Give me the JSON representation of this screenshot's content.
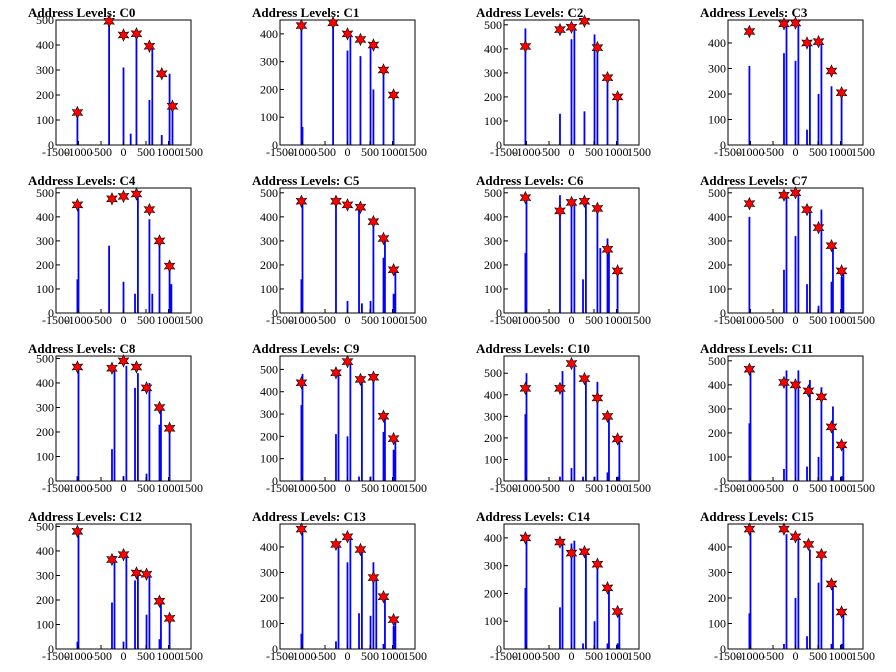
{
  "colors": {
    "bar": "#0000ff",
    "marker_fill": "#ff0000",
    "marker_edge": "#000000",
    "axes": "#000000"
  },
  "chart_data": [
    {
      "type": "bar",
      "title": "Address Levels: C0",
      "xlim": [
        -1500,
        1500
      ],
      "ylim": [
        0,
        500
      ],
      "xticks": [
        "-1500",
        "-1000",
        "-500",
        "0",
        "500",
        "1000",
        "1500"
      ],
      "yticks": [
        "0",
        "100",
        "200",
        "300",
        "400",
        "500"
      ],
      "x": [
        -1024,
        -320,
        0,
        160,
        288,
        576,
        640,
        850,
        1024,
        1088
      ],
      "y": [
        130,
        495,
        310,
        45,
        445,
        180,
        395,
        40,
        285,
        155
      ],
      "peaks": [
        [
          -1024,
          130
        ],
        [
          -320,
          495
        ],
        [
          0,
          440
        ],
        [
          288,
          445
        ],
        [
          576,
          395
        ],
        [
          850,
          285
        ],
        [
          1088,
          155
        ]
      ]
    },
    {
      "type": "bar",
      "title": "Address Levels: C1",
      "xlim": [
        -1500,
        1500
      ],
      "ylim": [
        0,
        450
      ],
      "xticks": [
        "-1500",
        "-1000",
        "-500",
        "0",
        "500",
        "1000",
        "1500"
      ],
      "yticks": [
        "0",
        "100",
        "200",
        "300",
        "400"
      ],
      "x": [
        -1024,
        -1000,
        -320,
        0,
        64,
        288,
        512,
        576,
        800,
        1024
      ],
      "y": [
        430,
        65,
        440,
        340,
        400,
        320,
        360,
        200,
        270,
        180
      ],
      "peaks": [
        [
          -1024,
          430
        ],
        [
          -320,
          440
        ],
        [
          0,
          400
        ],
        [
          288,
          380
        ],
        [
          576,
          360
        ],
        [
          800,
          270
        ],
        [
          1024,
          180
        ]
      ]
    },
    {
      "type": "bar",
      "title": "Address Levels: C2",
      "xlim": [
        -1500,
        1500
      ],
      "ylim": [
        0,
        520
      ],
      "xticks": [
        "-1500",
        "-1000",
        "-500",
        "0",
        "500",
        "1000",
        "1500"
      ],
      "yticks": [
        "0",
        "100",
        "200",
        "300",
        "400",
        "500"
      ],
      "x": [
        -1024,
        -256,
        0,
        64,
        288,
        512,
        576,
        800,
        1024
      ],
      "y": [
        485,
        130,
        440,
        480,
        140,
        460,
        400,
        290,
        200
      ],
      "peaks": [
        [
          -1024,
          410
        ],
        [
          -256,
          480
        ],
        [
          0,
          490
        ],
        [
          288,
          515
        ],
        [
          576,
          405
        ],
        [
          800,
          280
        ],
        [
          1024,
          200
        ]
      ]
    },
    {
      "type": "bar",
      "title": "Address Levels: C3",
      "xlim": [
        -1500,
        1500
      ],
      "ylim": [
        0,
        490
      ],
      "xticks": [
        "-1500",
        "-1000",
        "-500",
        "0",
        "500",
        "1000",
        "1500"
      ],
      "yticks": [
        "0",
        "100",
        "200",
        "300",
        "400"
      ],
      "x": [
        -1024,
        -256,
        -200,
        0,
        64,
        256,
        320,
        512,
        576,
        800,
        1024
      ],
      "y": [
        310,
        360,
        480,
        330,
        470,
        60,
        400,
        200,
        410,
        230,
        200
      ],
      "peaks": [
        [
          -1024,
          445
        ],
        [
          -256,
          475
        ],
        [
          0,
          478
        ],
        [
          256,
          400
        ],
        [
          512,
          405
        ],
        [
          800,
          290
        ],
        [
          1024,
          205
        ]
      ]
    },
    {
      "type": "bar",
      "title": "Address Levels: C4",
      "xlim": [
        -1500,
        1500
      ],
      "ylim": [
        0,
        520
      ],
      "xticks": [
        "-1500",
        "-1000",
        "-500",
        "0",
        "500",
        "1000",
        "1500"
      ],
      "yticks": [
        "0",
        "100",
        "200",
        "300",
        "400",
        "500"
      ],
      "x": [
        -1024,
        -1000,
        -320,
        0,
        256,
        320,
        576,
        640,
        800,
        1024,
        1064
      ],
      "y": [
        140,
        450,
        280,
        130,
        80,
        490,
        390,
        80,
        300,
        200,
        120
      ],
      "peaks": [
        [
          -1024,
          450
        ],
        [
          -256,
          475
        ],
        [
          0,
          485
        ],
        [
          288,
          495
        ],
        [
          576,
          430
        ],
        [
          800,
          300
        ],
        [
          1024,
          195
        ]
      ]
    },
    {
      "type": "bar",
      "title": "Address Levels: C5",
      "xlim": [
        -1500,
        1500
      ],
      "ylim": [
        0,
        520
      ],
      "xticks": [
        "-1500",
        "-1000",
        "-500",
        "0",
        "500",
        "1000",
        "1500"
      ],
      "yticks": [
        "0",
        "100",
        "200",
        "300",
        "400",
        "500"
      ],
      "x": [
        -1024,
        -1000,
        -256,
        0,
        256,
        320,
        512,
        576,
        800,
        832,
        1024,
        1064
      ],
      "y": [
        140,
        470,
        450,
        50,
        430,
        40,
        50,
        380,
        230,
        310,
        80,
        180
      ],
      "peaks": [
        [
          -1024,
          465
        ],
        [
          -256,
          465
        ],
        [
          0,
          450
        ],
        [
          288,
          440
        ],
        [
          576,
          380
        ],
        [
          800,
          310
        ],
        [
          1024,
          180
        ]
      ]
    },
    {
      "type": "bar",
      "title": "Address Levels: C6",
      "xlim": [
        -1500,
        1500
      ],
      "ylim": [
        0,
        520
      ],
      "xticks": [
        "-1500",
        "-1000",
        "-500",
        "0",
        "500",
        "1000",
        "1500"
      ],
      "yticks": [
        "0",
        "100",
        "200",
        "300",
        "400",
        "500"
      ],
      "x": [
        -1024,
        -1000,
        -256,
        0,
        64,
        256,
        320,
        576,
        640,
        800,
        832,
        1024
      ],
      "y": [
        250,
        480,
        490,
        450,
        460,
        140,
        470,
        440,
        270,
        310,
        260,
        180
      ],
      "peaks": [
        [
          -1024,
          480
        ],
        [
          -256,
          425
        ],
        [
          0,
          460
        ],
        [
          288,
          465
        ],
        [
          576,
          435
        ],
        [
          800,
          265
        ],
        [
          1024,
          175
        ]
      ]
    },
    {
      "type": "bar",
      "title": "Address Levels: C7",
      "xlim": [
        -1500,
        1500
      ],
      "ylim": [
        0,
        520
      ],
      "xticks": [
        "-1500",
        "-1000",
        "-500",
        "0",
        "500",
        "1000",
        "1500"
      ],
      "yticks": [
        "0",
        "100",
        "200",
        "300",
        "400",
        "500"
      ],
      "x": [
        -1024,
        -256,
        -200,
        0,
        64,
        256,
        320,
        512,
        576,
        800,
        832,
        1024,
        1064
      ],
      "y": [
        400,
        180,
        490,
        320,
        500,
        120,
        440,
        30,
        430,
        130,
        280,
        150,
        180
      ],
      "peaks": [
        [
          -1024,
          455
        ],
        [
          -256,
          490
        ],
        [
          0,
          500
        ],
        [
          256,
          430
        ],
        [
          512,
          355
        ],
        [
          800,
          280
        ],
        [
          1024,
          175
        ]
      ]
    },
    {
      "type": "bar",
      "title": "Address Levels: C8",
      "xlim": [
        -1500,
        1500
      ],
      "ylim": [
        0,
        510
      ],
      "xticks": [
        "-1500",
        "-1000",
        "-500",
        "0",
        "500",
        "1000",
        "1500"
      ],
      "yticks": [
        "0",
        "100",
        "200",
        "300",
        "400",
        "500"
      ],
      "x": [
        -1024,
        -1000,
        -256,
        -200,
        0,
        64,
        256,
        320,
        512,
        576,
        800,
        832,
        1024
      ],
      "y": [
        20,
        460,
        130,
        470,
        20,
        470,
        380,
        440,
        30,
        400,
        230,
        300,
        210
      ],
      "peaks": [
        [
          -1024,
          465
        ],
        [
          -256,
          460
        ],
        [
          0,
          490
        ],
        [
          288,
          465
        ],
        [
          512,
          380
        ],
        [
          800,
          300
        ],
        [
          1024,
          215
        ]
      ]
    },
    {
      "type": "bar",
      "title": "Address Levels: C9",
      "xlim": [
        -1500,
        1500
      ],
      "ylim": [
        0,
        560
      ],
      "xticks": [
        "-1500",
        "-1000",
        "-500",
        "0",
        "500",
        "1000",
        "1500"
      ],
      "yticks": [
        "0",
        "100",
        "200",
        "300",
        "400",
        "500"
      ],
      "x": [
        -1024,
        -1000,
        -256,
        -200,
        0,
        64,
        256,
        320,
        512,
        576,
        800,
        832,
        1024,
        1064
      ],
      "y": [
        340,
        480,
        210,
        490,
        200,
        530,
        20,
        470,
        20,
        470,
        220,
        300,
        140,
        190
      ],
      "peaks": [
        [
          -1024,
          440
        ],
        [
          -256,
          485
        ],
        [
          0,
          535
        ],
        [
          288,
          455
        ],
        [
          576,
          465
        ],
        [
          800,
          290
        ],
        [
          1024,
          190
        ]
      ]
    },
    {
      "type": "bar",
      "title": "Address Levels: C10",
      "xlim": [
        -1500,
        1500
      ],
      "ylim": [
        0,
        580
      ],
      "xticks": [
        "-1500",
        "-1000",
        "-500",
        "0",
        "500",
        "1000",
        "1500"
      ],
      "yticks": [
        "0",
        "100",
        "200",
        "300",
        "400",
        "500"
      ],
      "x": [
        -1024,
        -1000,
        -256,
        -200,
        0,
        64,
        256,
        320,
        512,
        576,
        800,
        832,
        1024,
        1064
      ],
      "y": [
        310,
        500,
        20,
        510,
        60,
        530,
        20,
        480,
        20,
        460,
        40,
        310,
        20,
        190
      ],
      "peaks": [
        [
          -1024,
          430
        ],
        [
          -256,
          430
        ],
        [
          0,
          545
        ],
        [
          288,
          475
        ],
        [
          576,
          385
        ],
        [
          800,
          300
        ],
        [
          1024,
          195
        ]
      ]
    },
    {
      "type": "bar",
      "title": "Address Levels: C11",
      "xlim": [
        -1500,
        1500
      ],
      "ylim": [
        0,
        520
      ],
      "xticks": [
        "-1500",
        "-1000",
        "-500",
        "0",
        "500",
        "1000",
        "1500"
      ],
      "yticks": [
        "0",
        "100",
        "200",
        "300",
        "400",
        "500"
      ],
      "x": [
        -1024,
        -1000,
        -256,
        -200,
        0,
        64,
        256,
        320,
        512,
        576,
        800,
        832,
        1024,
        1064
      ],
      "y": [
        240,
        470,
        50,
        460,
        380,
        460,
        60,
        420,
        100,
        390,
        20,
        310,
        20,
        150
      ],
      "peaks": [
        [
          -1024,
          465
        ],
        [
          -256,
          410
        ],
        [
          0,
          400
        ],
        [
          288,
          375
        ],
        [
          576,
          350
        ],
        [
          800,
          225
        ],
        [
          1024,
          150
        ]
      ]
    },
    {
      "type": "bar",
      "title": "Address Levels: C12",
      "xlim": [
        -1500,
        1500
      ],
      "ylim": [
        0,
        510
      ],
      "xticks": [
        "-1500",
        "-1000",
        "-500",
        "0",
        "500",
        "1000",
        "1500"
      ],
      "yticks": [
        "0",
        "100",
        "200",
        "300",
        "400",
        "500"
      ],
      "x": [
        -1024,
        -1000,
        -256,
        -200,
        0,
        64,
        256,
        320,
        512,
        576,
        800,
        832,
        1024
      ],
      "y": [
        30,
        480,
        190,
        380,
        30,
        390,
        280,
        320,
        140,
        310,
        40,
        200,
        130
      ],
      "peaks": [
        [
          -1024,
          480
        ],
        [
          -256,
          365
        ],
        [
          0,
          385
        ],
        [
          288,
          310
        ],
        [
          512,
          305
        ],
        [
          800,
          195
        ],
        [
          1024,
          125
        ]
      ]
    },
    {
      "type": "bar",
      "title": "Address Levels: C13",
      "xlim": [
        -1500,
        1500
      ],
      "ylim": [
        0,
        490
      ],
      "xticks": [
        "-1500",
        "-1000",
        "-500",
        "0",
        "500",
        "1000",
        "1500"
      ],
      "yticks": [
        "0",
        "100",
        "200",
        "300",
        "400"
      ],
      "x": [
        -1024,
        -1000,
        -256,
        -200,
        0,
        64,
        256,
        320,
        512,
        576,
        640,
        800,
        832,
        1024,
        1064
      ],
      "y": [
        60,
        470,
        30,
        410,
        340,
        450,
        140,
        400,
        130,
        340,
        270,
        20,
        200,
        90,
        120
      ],
      "peaks": [
        [
          -1024,
          470
        ],
        [
          -256,
          410
        ],
        [
          0,
          440
        ],
        [
          288,
          390
        ],
        [
          576,
          280
        ],
        [
          800,
          205
        ],
        [
          1024,
          115
        ]
      ]
    },
    {
      "type": "bar",
      "title": "Address Levels: C14",
      "xlim": [
        -1500,
        1500
      ],
      "ylim": [
        0,
        450
      ],
      "xticks": [
        "-1500",
        "-1000",
        "-500",
        "0",
        "500",
        "1000",
        "1500"
      ],
      "yticks": [
        "0",
        "100",
        "200",
        "300",
        "400"
      ],
      "x": [
        -1024,
        -1000,
        -256,
        -200,
        0,
        64,
        256,
        320,
        512,
        576,
        800,
        832,
        1024,
        1064
      ],
      "y": [
        220,
        400,
        150,
        390,
        380,
        390,
        20,
        340,
        100,
        320,
        20,
        220,
        20,
        140
      ],
      "peaks": [
        [
          -1024,
          400
        ],
        [
          -256,
          385
        ],
        [
          0,
          345
        ],
        [
          288,
          350
        ],
        [
          576,
          305
        ],
        [
          800,
          220
        ],
        [
          1024,
          135
        ]
      ]
    },
    {
      "type": "bar",
      "title": "Address Levels: C15",
      "xlim": [
        -1500,
        1500
      ],
      "ylim": [
        0,
        490
      ],
      "xticks": [
        "-1500",
        "-1000",
        "-500",
        "0",
        "500",
        "1000",
        "1500"
      ],
      "yticks": [
        "0",
        "100",
        "200",
        "300",
        "400"
      ],
      "x": [
        -1024,
        -1000,
        -256,
        -200,
        0,
        64,
        256,
        320,
        512,
        576,
        800,
        832,
        1024,
        1064
      ],
      "y": [
        140,
        470,
        20,
        450,
        200,
        430,
        50,
        390,
        260,
        360,
        20,
        250,
        20,
        140
      ],
      "peaks": [
        [
          -1024,
          470
        ],
        [
          -256,
          470
        ],
        [
          0,
          440
        ],
        [
          288,
          410
        ],
        [
          576,
          370
        ],
        [
          800,
          255
        ],
        [
          1024,
          145
        ]
      ]
    }
  ]
}
